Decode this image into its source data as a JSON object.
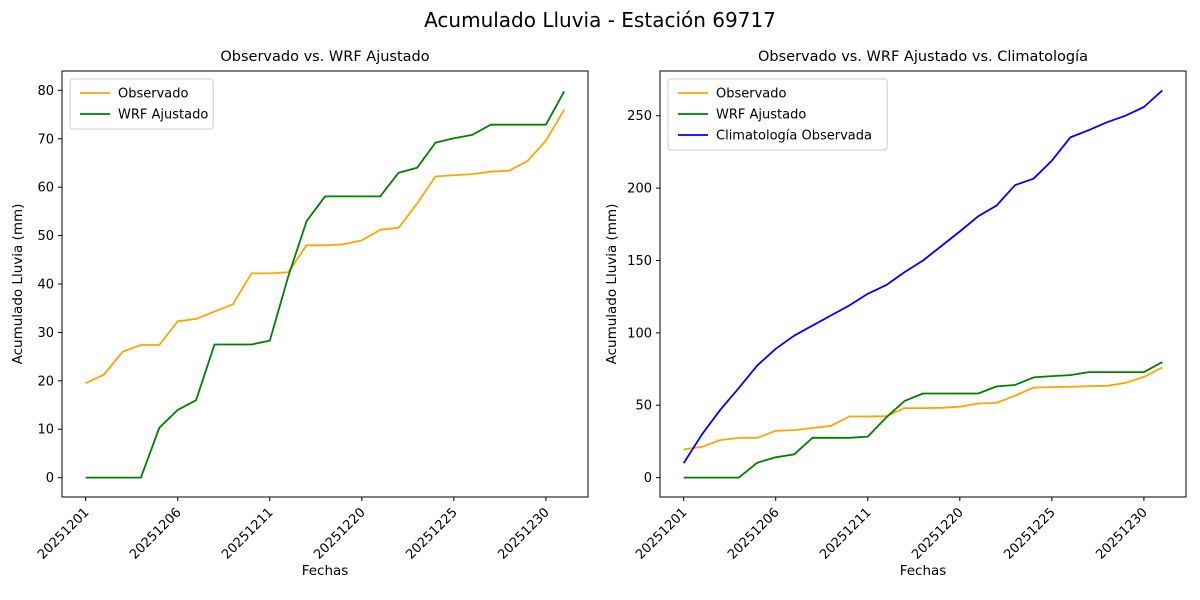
{
  "figure": {
    "title": "Acumulado Lluvia - Estación 69717",
    "background": "#ffffff"
  },
  "chart_data": [
    {
      "type": "line",
      "title": "Observado vs. WRF Ajustado",
      "xlabel": "Fechas",
      "ylabel": "Acumulado Lluvia (mm)",
      "x_tick_positions": [
        0,
        5,
        10,
        15,
        20,
        25
      ],
      "x_tick_labels": [
        "20251201",
        "20251206",
        "20251211",
        "20251220",
        "20251225",
        "20251230"
      ],
      "x_tick_rotation": 45,
      "yticks": [
        0,
        10,
        20,
        30,
        40,
        50,
        60,
        70,
        80
      ],
      "ylim": [
        -4.0,
        84.0
      ],
      "grid": false,
      "legend_position": "upper left",
      "series": [
        {
          "name": "Observado",
          "color": "#FFA500",
          "values": [
            19.5,
            21.3,
            26.0,
            27.4,
            27.4,
            32.3,
            32.8,
            34.3,
            35.8,
            42.2,
            42.2,
            42.4,
            48.0,
            48.0,
            48.2,
            49.0,
            51.2,
            51.6,
            56.6,
            62.2,
            62.5,
            62.7,
            63.2,
            63.4,
            65.4,
            69.6,
            76.0
          ]
        },
        {
          "name": "WRF Ajustado",
          "color": "#008000",
          "values": [
            0,
            0,
            0,
            0,
            10.3,
            14.0,
            16.0,
            27.5,
            27.5,
            27.5,
            28.3,
            41.5,
            53.0,
            58.1,
            58.1,
            58.1,
            58.1,
            63.0,
            64.0,
            69.2,
            70.1,
            70.8,
            72.9,
            72.9,
            72.9,
            72.9,
            79.8
          ]
        }
      ]
    },
    {
      "type": "line",
      "title": "Observado vs. WRF Ajustado vs. Climatología",
      "xlabel": "Fechas",
      "ylabel": "Acumulado Lluvia (mm)",
      "x_tick_positions": [
        0,
        5,
        10,
        15,
        20,
        25
      ],
      "x_tick_labels": [
        "20251201",
        "20251206",
        "20251211",
        "20251220",
        "20251225",
        "20251230"
      ],
      "x_tick_rotation": 45,
      "yticks": [
        0,
        50,
        100,
        150,
        200,
        250
      ],
      "ylim": [
        -13.4,
        280.9
      ],
      "grid": false,
      "legend_position": "upper left",
      "series": [
        {
          "name": "Observado",
          "color": "#FFA500",
          "values": [
            19.5,
            21.3,
            26.0,
            27.4,
            27.4,
            32.3,
            32.8,
            34.3,
            35.8,
            42.2,
            42.2,
            42.4,
            48.0,
            48.0,
            48.2,
            49.0,
            51.2,
            51.6,
            56.6,
            62.2,
            62.5,
            62.7,
            63.2,
            63.4,
            65.4,
            69.6,
            76.0
          ]
        },
        {
          "name": "WRF Ajustado",
          "color": "#008000",
          "values": [
            0,
            0,
            0,
            0,
            10.3,
            14.0,
            16.0,
            27.5,
            27.5,
            27.5,
            28.3,
            41.5,
            53.0,
            58.1,
            58.1,
            58.1,
            58.1,
            63.0,
            64.0,
            69.2,
            70.1,
            70.8,
            72.9,
            72.9,
            72.9,
            72.9,
            79.8
          ]
        },
        {
          "name": "Climatología Observada",
          "color": "#0000FF",
          "values": [
            10,
            30,
            47,
            62,
            77.5,
            89,
            98,
            105,
            112,
            119,
            127,
            133,
            142,
            150,
            160,
            170,
            180.5,
            188,
            202,
            206.5,
            219,
            235,
            240,
            245.5,
            250,
            256,
            267.5
          ]
        }
      ]
    }
  ]
}
